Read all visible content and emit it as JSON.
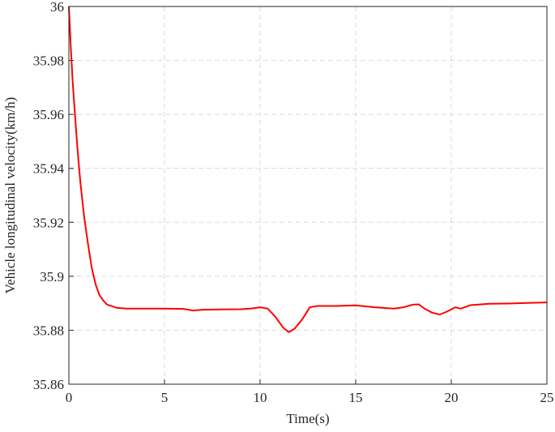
{
  "chart_data": {
    "type": "line",
    "x_label": "Time(s)",
    "y_label": "Vehicle longitudinal velocity(km/h)",
    "xlim": [
      0,
      25
    ],
    "xticks": [
      0,
      5,
      10,
      15,
      20,
      25
    ],
    "ylim": [
      35.86,
      36
    ],
    "yticks": [
      35.86,
      35.88,
      35.9,
      35.92,
      35.94,
      35.96,
      35.98,
      36
    ],
    "grid": true,
    "series": [
      {
        "color": "#ff0000",
        "x": [
          0,
          0.1,
          0.2,
          0.3,
          0.4,
          0.5,
          0.6,
          0.8,
          1.0,
          1.2,
          1.4,
          1.6,
          1.8,
          2.0,
          2.5,
          3,
          4,
          5,
          6,
          6.5,
          7,
          8,
          9,
          9.5,
          10,
          10.4,
          10.8,
          11.2,
          11.5,
          11.8,
          12.2,
          12.6,
          13,
          14,
          15,
          16,
          17,
          17.5,
          18,
          18.3,
          18.6,
          19,
          19.4,
          19.8,
          20.2,
          20.5,
          21,
          22,
          23,
          24,
          25
        ],
        "values": [
          36,
          35.985,
          35.972,
          35.962,
          35.952,
          35.943,
          35.935,
          35.922,
          35.912,
          35.903,
          35.897,
          35.893,
          35.891,
          35.8895,
          35.8883,
          35.888,
          35.888,
          35.888,
          35.8879,
          35.8873,
          35.8876,
          35.8877,
          35.8878,
          35.888,
          35.8885,
          35.888,
          35.885,
          35.881,
          35.8793,
          35.8805,
          35.884,
          35.8885,
          35.889,
          35.889,
          35.8892,
          35.8885,
          35.888,
          35.8885,
          35.8895,
          35.8896,
          35.888,
          35.8865,
          35.8858,
          35.887,
          35.8885,
          35.888,
          35.8893,
          35.8898,
          35.8899,
          35.8901,
          35.8903
        ]
      }
    ]
  }
}
